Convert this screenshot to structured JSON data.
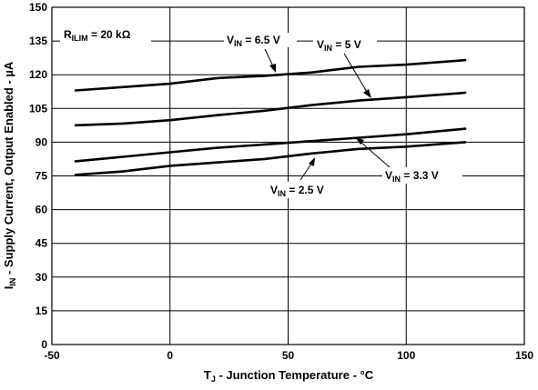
{
  "chart_data": {
    "type": "line",
    "xlabel": {
      "main": "T",
      "sub": "J",
      "rest": " - Junction Temperature - °C"
    },
    "ylabel": {
      "main": "I",
      "sub": "IN",
      "rest": " - Supply Current, Output Enabled - µA"
    },
    "xlim": [
      -50,
      150
    ],
    "ylim": [
      0,
      150
    ],
    "xticks": [
      "-50",
      "0",
      "50",
      "100",
      "150"
    ],
    "yticks": [
      "0",
      "15",
      "30",
      "45",
      "60",
      "75",
      "90",
      "105",
      "120",
      "135",
      "150"
    ],
    "grid": true,
    "condition": {
      "main": "R",
      "sub": "ILIM",
      "rest": " = 20 kΩ"
    },
    "series": [
      {
        "name": "V_IN = 6.5 V",
        "label": {
          "main": "V",
          "sub": "IN",
          "rest": " = 6.5 V"
        },
        "x": [
          -40,
          -20,
          0,
          20,
          40,
          60,
          80,
          100,
          125
        ],
        "y": [
          113,
          114.5,
          116,
          118.5,
          119.5,
          121,
          123.5,
          124.5,
          126.5
        ]
      },
      {
        "name": "V_IN = 5 V",
        "label": {
          "main": "V",
          "sub": "IN",
          "rest": " = 5 V"
        },
        "x": [
          -40,
          -20,
          0,
          20,
          40,
          60,
          80,
          100,
          125
        ],
        "y": [
          97.5,
          98.3,
          99.8,
          102,
          104,
          106.5,
          108.5,
          110,
          112
        ]
      },
      {
        "name": "V_IN = 3.3 V",
        "label": {
          "main": "V",
          "sub": "IN",
          "rest": " = 3.3 V"
        },
        "x": [
          -40,
          -20,
          0,
          20,
          40,
          60,
          80,
          100,
          125
        ],
        "y": [
          81.5,
          83.5,
          85.5,
          87.5,
          89,
          90.5,
          92,
          93.5,
          96
        ]
      },
      {
        "name": "V_IN = 2.5 V",
        "label": {
          "main": "V",
          "sub": "IN",
          "rest": " = 2.5 V"
        },
        "x": [
          -40,
          -20,
          0,
          20,
          40,
          60,
          80,
          100,
          125
        ],
        "y": [
          75.5,
          77,
          79.5,
          81,
          82.5,
          85,
          87,
          88,
          90
        ]
      }
    ]
  }
}
